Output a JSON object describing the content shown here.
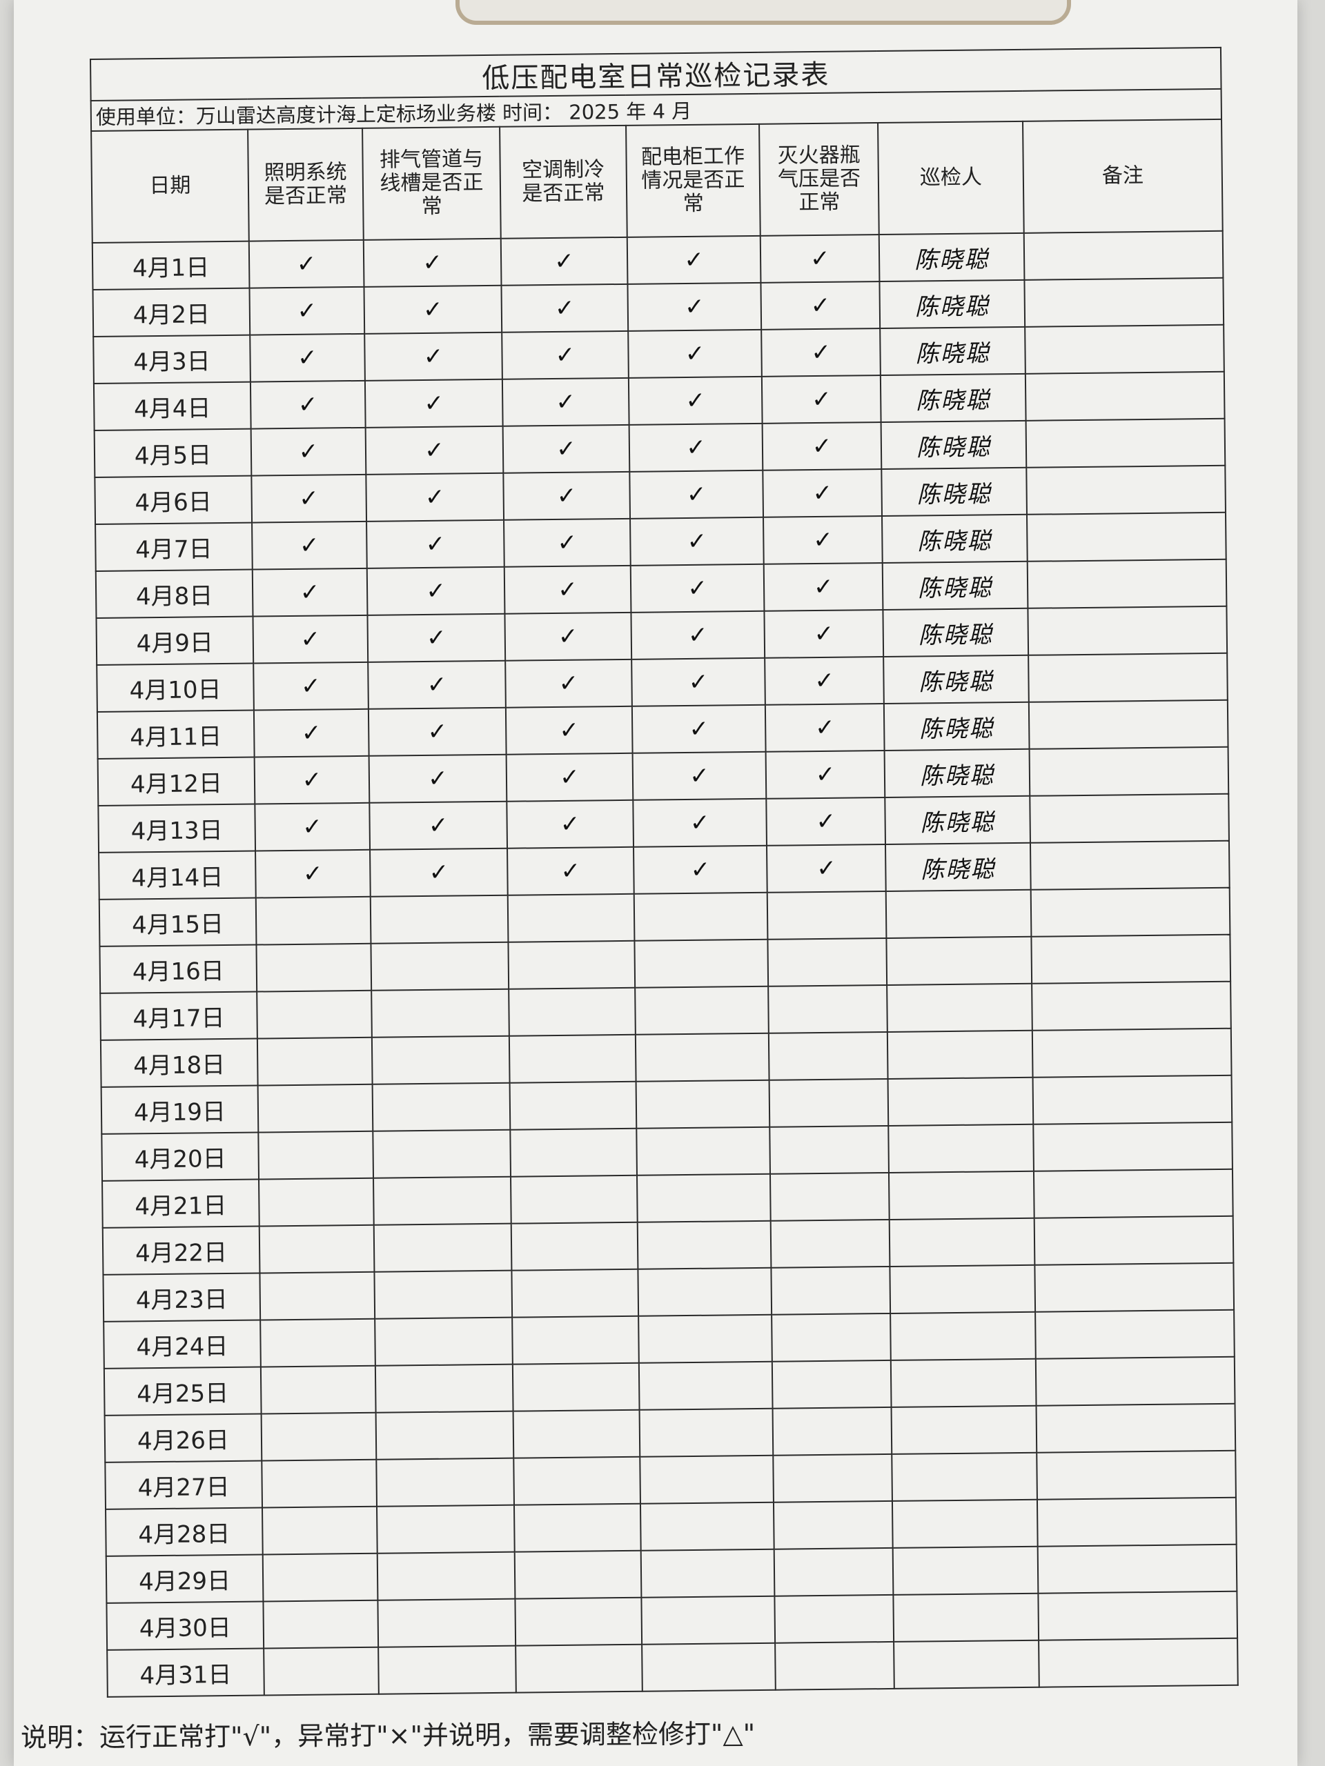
{
  "title": "低压配电室日常巡检记录表",
  "unit_line": "使用单位：万山雷达高度计海上定标场业务楼  时间：  2025 年 4 月",
  "headers": [
    "日期",
    "照明系统是否正常",
    "排气管道与线槽是否正常",
    "空调制冷是否正常",
    "配电柜工作情况是否正常",
    "灭火器瓶气压是否正常",
    "巡检人",
    "备注"
  ],
  "check_mark": "✓",
  "rows": [
    {
      "date": "4月1日",
      "checks": [
        "✓",
        "✓",
        "✓",
        "✓",
        "✓"
      ],
      "inspector": "陈晓聪",
      "remark": ""
    },
    {
      "date": "4月2日",
      "checks": [
        "✓",
        "✓",
        "✓",
        "✓",
        "✓"
      ],
      "inspector": "陈晓聪",
      "remark": ""
    },
    {
      "date": "4月3日",
      "checks": [
        "✓",
        "✓",
        "✓",
        "✓",
        "✓"
      ],
      "inspector": "陈晓聪",
      "remark": ""
    },
    {
      "date": "4月4日",
      "checks": [
        "✓",
        "✓",
        "✓",
        "✓",
        "✓"
      ],
      "inspector": "陈晓聪",
      "remark": ""
    },
    {
      "date": "4月5日",
      "checks": [
        "✓",
        "✓",
        "✓",
        "✓",
        "✓"
      ],
      "inspector": "陈晓聪",
      "remark": ""
    },
    {
      "date": "4月6日",
      "checks": [
        "✓",
        "✓",
        "✓",
        "✓",
        "✓"
      ],
      "inspector": "陈晓聪",
      "remark": ""
    },
    {
      "date": "4月7日",
      "checks": [
        "✓",
        "✓",
        "✓",
        "✓",
        "✓"
      ],
      "inspector": "陈晓聪",
      "remark": ""
    },
    {
      "date": "4月8日",
      "checks": [
        "✓",
        "✓",
        "✓",
        "✓",
        "✓"
      ],
      "inspector": "陈晓聪",
      "remark": ""
    },
    {
      "date": "4月9日",
      "checks": [
        "✓",
        "✓",
        "✓",
        "✓",
        "✓"
      ],
      "inspector": "陈晓聪",
      "remark": ""
    },
    {
      "date": "4月10日",
      "checks": [
        "✓",
        "✓",
        "✓",
        "✓",
        "✓"
      ],
      "inspector": "陈晓聪",
      "remark": ""
    },
    {
      "date": "4月11日",
      "checks": [
        "✓",
        "✓",
        "✓",
        "✓",
        "✓"
      ],
      "inspector": "陈晓聪",
      "remark": ""
    },
    {
      "date": "4月12日",
      "checks": [
        "✓",
        "✓",
        "✓",
        "✓",
        "✓"
      ],
      "inspector": "陈晓聪",
      "remark": ""
    },
    {
      "date": "4月13日",
      "checks": [
        "✓",
        "✓",
        "✓",
        "✓",
        "✓"
      ],
      "inspector": "陈晓聪",
      "remark": ""
    },
    {
      "date": "4月14日",
      "checks": [
        "✓",
        "✓",
        "✓",
        "✓",
        "✓"
      ],
      "inspector": "陈晓聪",
      "remark": ""
    },
    {
      "date": "4月15日",
      "checks": [
        "",
        "",
        "",
        "",
        ""
      ],
      "inspector": "",
      "remark": ""
    },
    {
      "date": "4月16日",
      "checks": [
        "",
        "",
        "",
        "",
        ""
      ],
      "inspector": "",
      "remark": ""
    },
    {
      "date": "4月17日",
      "checks": [
        "",
        "",
        "",
        "",
        ""
      ],
      "inspector": "",
      "remark": ""
    },
    {
      "date": "4月18日",
      "checks": [
        "",
        "",
        "",
        "",
        ""
      ],
      "inspector": "",
      "remark": ""
    },
    {
      "date": "4月19日",
      "checks": [
        "",
        "",
        "",
        "",
        ""
      ],
      "inspector": "",
      "remark": ""
    },
    {
      "date": "4月20日",
      "checks": [
        "",
        "",
        "",
        "",
        ""
      ],
      "inspector": "",
      "remark": ""
    },
    {
      "date": "4月21日",
      "checks": [
        "",
        "",
        "",
        "",
        ""
      ],
      "inspector": "",
      "remark": ""
    },
    {
      "date": "4月22日",
      "checks": [
        "",
        "",
        "",
        "",
        ""
      ],
      "inspector": "",
      "remark": ""
    },
    {
      "date": "4月23日",
      "checks": [
        "",
        "",
        "",
        "",
        ""
      ],
      "inspector": "",
      "remark": ""
    },
    {
      "date": "4月24日",
      "checks": [
        "",
        "",
        "",
        "",
        ""
      ],
      "inspector": "",
      "remark": ""
    },
    {
      "date": "4月25日",
      "checks": [
        "",
        "",
        "",
        "",
        ""
      ],
      "inspector": "",
      "remark": ""
    },
    {
      "date": "4月26日",
      "checks": [
        "",
        "",
        "",
        "",
        ""
      ],
      "inspector": "",
      "remark": ""
    },
    {
      "date": "4月27日",
      "checks": [
        "",
        "",
        "",
        "",
        ""
      ],
      "inspector": "",
      "remark": ""
    },
    {
      "date": "4月28日",
      "checks": [
        "",
        "",
        "",
        "",
        ""
      ],
      "inspector": "",
      "remark": ""
    },
    {
      "date": "4月29日",
      "checks": [
        "",
        "",
        "",
        "",
        ""
      ],
      "inspector": "",
      "remark": ""
    },
    {
      "date": "4月30日",
      "checks": [
        "",
        "",
        "",
        "",
        ""
      ],
      "inspector": "",
      "remark": ""
    },
    {
      "date": "4月31日",
      "checks": [
        "",
        "",
        "",
        "",
        ""
      ],
      "inspector": "",
      "remark": ""
    }
  ],
  "footnote": "说明：运行正常打\"√\"，异常打\"×\"并说明，需要调整检修打\"△\""
}
